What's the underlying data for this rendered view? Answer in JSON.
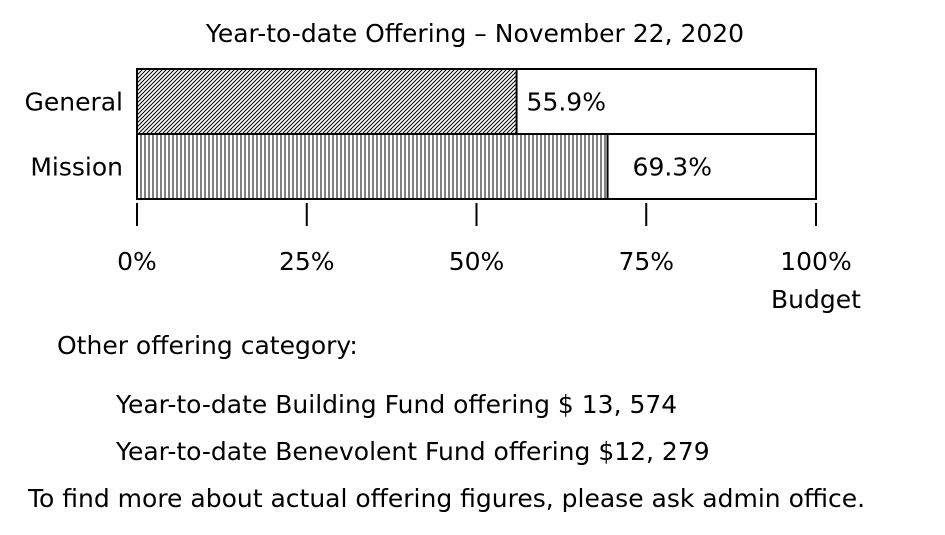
{
  "chart_data": {
    "type": "bar",
    "orientation": "horizontal",
    "title": "Year-to-date Offering – November 22, 2020",
    "categories": [
      "General",
      "Mission"
    ],
    "values": [
      55.9,
      69.3
    ],
    "value_labels": [
      "55.9%",
      "69.3%"
    ],
    "patterns": [
      "diagonal-hatch",
      "vertical-hatch"
    ],
    "xlim": [
      0,
      100
    ],
    "ticks": [
      0,
      25,
      50,
      75,
      100
    ],
    "tick_labels": [
      "0%",
      "25%",
      "50%",
      "75%",
      "100%"
    ],
    "xlabel": "Budget",
    "ylabel": "",
    "grid": false,
    "legend": "none"
  },
  "notes": {
    "heading": "Other offering category:",
    "building_fund": "Year-to-date Building Fund offering $ 13, 574",
    "benevolent_fund": "Year-to-date Benevolent Fund offering $12, 279",
    "footer": "To find more about actual offering figures, please ask admin office."
  }
}
